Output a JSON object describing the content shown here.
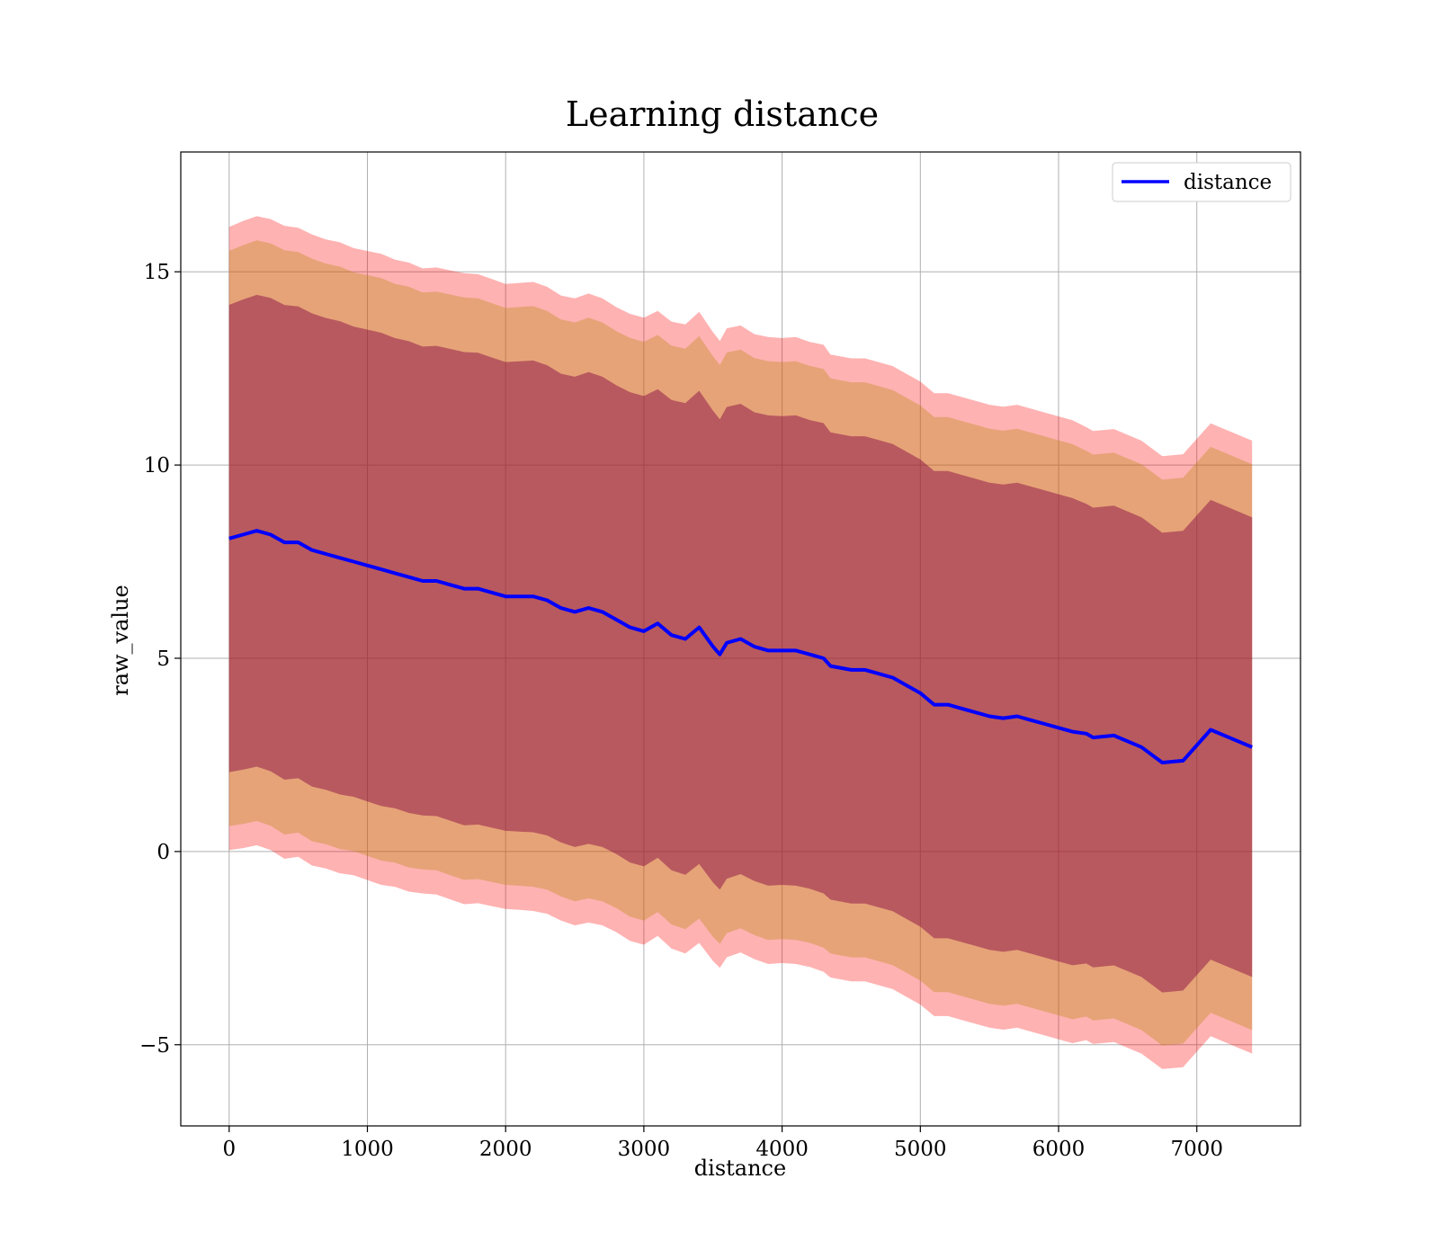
{
  "chart_data": {
    "type": "line",
    "title": "Learning distance",
    "xlabel": "distance",
    "ylabel": "raw_value",
    "xlim": [
      -350,
      7750
    ],
    "ylim": [
      -7.1,
      18.1
    ],
    "xticks": [
      0,
      1000,
      2000,
      3000,
      4000,
      5000,
      6000,
      7000
    ],
    "xtick_labels": [
      "0",
      "1000",
      "2000",
      "3000",
      "4000",
      "5000",
      "6000",
      "7000"
    ],
    "yticks": [
      -5,
      0,
      5,
      10,
      15
    ],
    "ytick_labels": [
      "−5",
      "0",
      "5",
      "10",
      "15"
    ],
    "grid": true,
    "legend": {
      "position": "top-right",
      "entries": [
        "distance"
      ]
    },
    "colors": {
      "line": "#0000ff",
      "band_outer": "#ff0000",
      "band_middle": "#b8860b",
      "band_inner": "#800040",
      "grid": "#b0b0b0"
    },
    "series": [
      {
        "name": "distance",
        "x": [
          0,
          100,
          200,
          300,
          400,
          500,
          600,
          700,
          800,
          900,
          1000,
          1100,
          1200,
          1300,
          1400,
          1500,
          1600,
          1700,
          1800,
          1900,
          2000,
          2100,
          2200,
          2300,
          2400,
          2500,
          2600,
          2700,
          2800,
          2900,
          3000,
          3100,
          3200,
          3300,
          3400,
          3500,
          3550,
          3600,
          3700,
          3800,
          3900,
          4000,
          4100,
          4200,
          4300,
          4350,
          4500,
          4600,
          4700,
          4800,
          4900,
          5000,
          5100,
          5200,
          5300,
          5400,
          5500,
          5600,
          5700,
          5800,
          5900,
          6000,
          6100,
          6200,
          6250,
          6400,
          6600,
          6750,
          6900,
          7100,
          7400
        ],
        "y": [
          8.1,
          8.2,
          8.3,
          8.2,
          8.0,
          8.0,
          7.8,
          7.7,
          7.6,
          7.5,
          7.4,
          7.3,
          7.2,
          7.1,
          7.0,
          7.0,
          6.9,
          6.8,
          6.8,
          6.7,
          6.6,
          6.6,
          6.6,
          6.5,
          6.3,
          6.2,
          6.3,
          6.2,
          6.0,
          5.8,
          5.7,
          5.9,
          5.6,
          5.5,
          5.8,
          5.3,
          5.1,
          5.4,
          5.5,
          5.3,
          5.2,
          5.2,
          5.2,
          5.1,
          5.0,
          4.8,
          4.7,
          4.7,
          4.6,
          4.5,
          4.3,
          4.1,
          3.8,
          3.8,
          3.7,
          3.6,
          3.5,
          3.45,
          3.5,
          3.4,
          3.3,
          3.2,
          3.1,
          3.05,
          2.95,
          3.0,
          2.7,
          2.3,
          2.35,
          3.15,
          2.7
        ],
        "std": [
          3.1,
          3.12,
          3.13,
          3.14,
          3.15,
          3.13,
          3.14,
          3.13,
          3.14,
          3.12,
          3.13,
          3.14,
          3.12,
          3.13,
          3.11,
          3.12,
          3.13,
          3.14,
          3.13,
          3.12,
          3.11,
          3.12,
          3.13,
          3.12,
          3.11,
          3.12,
          3.13,
          3.12,
          3.11,
          3.12,
          3.12,
          3.11,
          3.12,
          3.13,
          3.14,
          3.13,
          3.12,
          3.13,
          3.12,
          3.11,
          3.12,
          3.11,
          3.12,
          3.11,
          3.12,
          3.1,
          3.1,
          3.1,
          3.1,
          3.1,
          3.1,
          3.1,
          3.1,
          3.1,
          3.1,
          3.1,
          3.1,
          3.1,
          3.1,
          3.1,
          3.1,
          3.1,
          3.1,
          3.05,
          3.05,
          3.05,
          3.05,
          3.05,
          3.05,
          3.05,
          3.05
        ]
      }
    ],
    "bands": [
      {
        "label": "outer",
        "k": 2.6
      },
      {
        "label": "middle",
        "k": 2.4
      },
      {
        "label": "inner",
        "k": 1.95
      }
    ]
  }
}
